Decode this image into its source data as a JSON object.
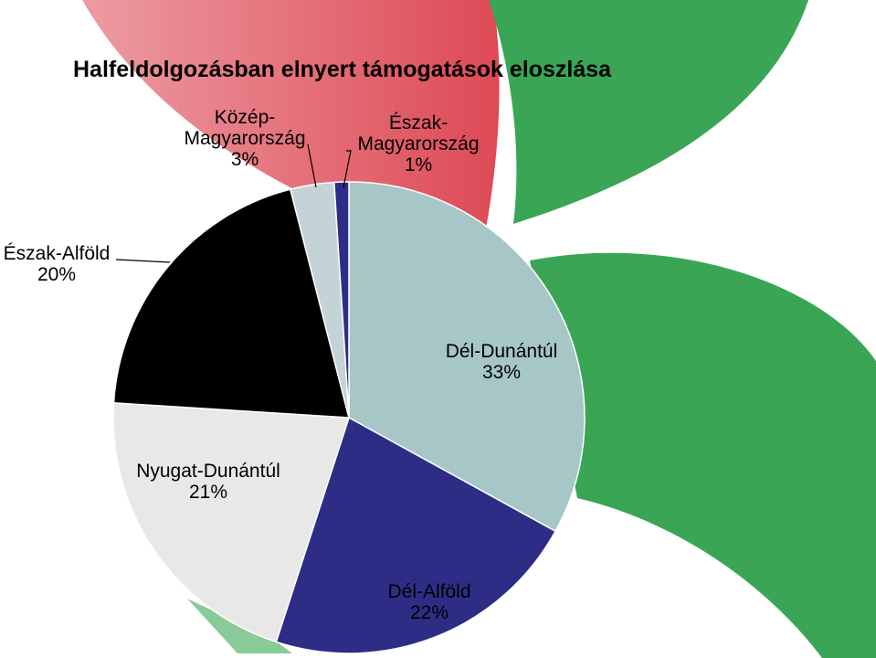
{
  "background": {
    "leaf_colors": {
      "red": "#dd4a56",
      "green": "#3aa655"
    }
  },
  "chart_data": {
    "type": "pie",
    "title": "Halfeldolgozásban elnyert támogatások eloszlása",
    "slices": [
      {
        "key": "del-dunantul",
        "label": "Dél-Dunántúl",
        "value": 33,
        "pct": "33%",
        "color": "#a6c6c7"
      },
      {
        "key": "del-alfold",
        "label": "Dél-Alföld",
        "value": 22,
        "pct": "22%",
        "color": "#2e2d85"
      },
      {
        "key": "nyugat-dunantul",
        "label": "Nyugat-Dunántúl",
        "value": 21,
        "pct": "21%",
        "color": "#e8e8e8"
      },
      {
        "key": "eszak-alfold",
        "label": "Észak-Alföld",
        "value": 20,
        "pct": "20%",
        "color": "#000000"
      },
      {
        "key": "kozep-magyarorszag",
        "label_lines": [
          "Közép-",
          "Magyarország"
        ],
        "value": 3,
        "pct": "3%",
        "color": "#c4d4d6"
      },
      {
        "key": "eszak-magyarorszag",
        "label_lines": [
          "Észak-",
          "Magyarország"
        ],
        "value": 1,
        "pct": "1%",
        "color": "#2e2d85"
      }
    ],
    "legend": "none"
  }
}
